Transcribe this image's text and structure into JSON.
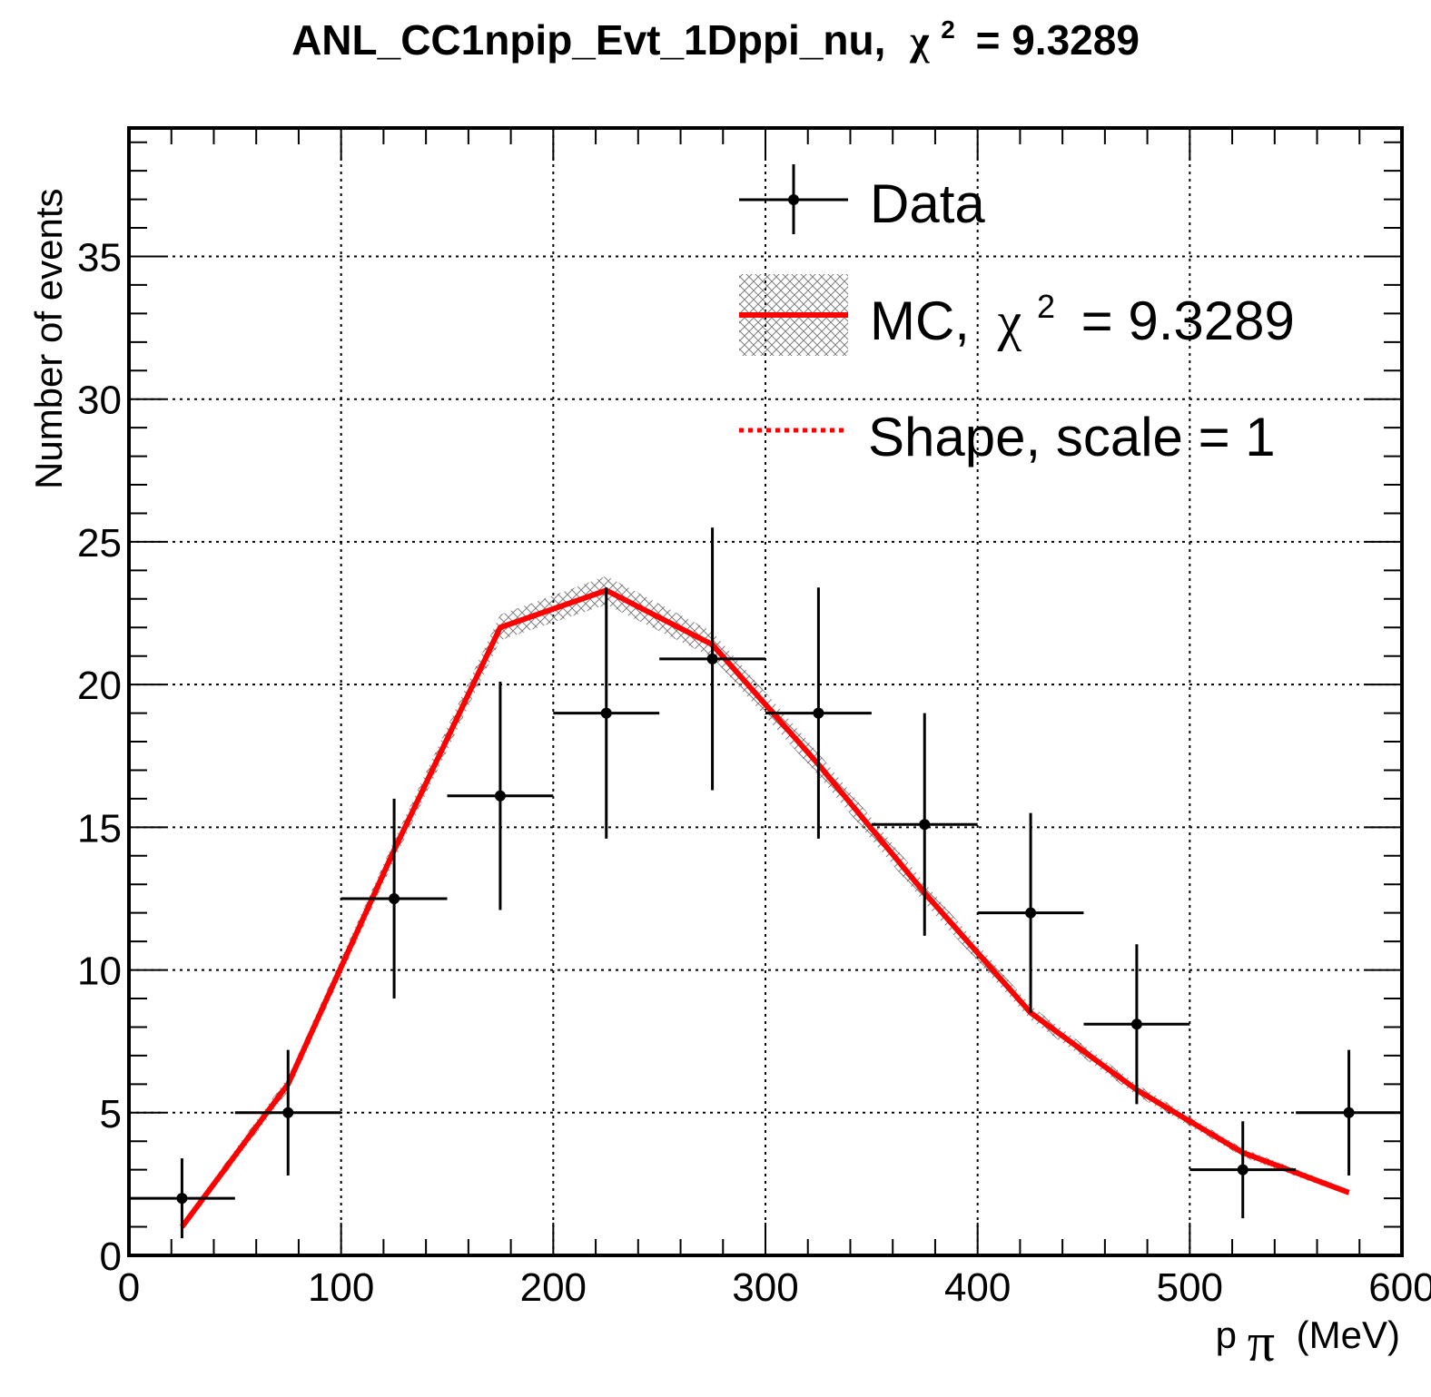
{
  "chart_data": {
    "type": "line",
    "title": {
      "name": "ANL_CC1npip_Evt_1Dppi_nu,",
      "chi_symbol": "χ",
      "chi_power": "2",
      "chi_value": "= 9.3289"
    },
    "xlabel": {
      "main": "p",
      "sub": "π",
      "unit": "(MeV)"
    },
    "ylabel": "Number of events",
    "xlim": [
      0,
      600
    ],
    "ylim": [
      0,
      39.5
    ],
    "xticks": [
      0,
      100,
      200,
      300,
      400,
      500,
      600
    ],
    "yticks": [
      0,
      5,
      10,
      15,
      20,
      25,
      30,
      35
    ],
    "x_minor_step": 20,
    "y_minor_step": 1,
    "grid": true,
    "legend_position": "top-right",
    "legend": {
      "data_label": "Data",
      "mc_label": "MC,",
      "mc_chi_symbol": "χ",
      "mc_chi_power": "2",
      "mc_chi_value": "= 9.3289",
      "shape_label": "Shape, scale = 1"
    },
    "colors": {
      "data": "#000000",
      "mc": "#ff0000",
      "band": "#808080",
      "grid": "#000000"
    },
    "series": [
      {
        "name": "Data",
        "kind": "points",
        "x": [
          25,
          75,
          125,
          175,
          225,
          275,
          325,
          375,
          425,
          475,
          525,
          575
        ],
        "y": [
          2,
          5,
          12.5,
          16.1,
          19,
          20.9,
          19,
          15.1,
          12,
          8.1,
          3,
          5
        ],
        "x_half_width": 25,
        "y_err": [
          1.4,
          2.2,
          3.5,
          4.0,
          4.4,
          4.6,
          4.4,
          3.9,
          3.5,
          2.8,
          1.7,
          2.2
        ]
      },
      {
        "name": "MC, χ2 = 9.3289",
        "kind": "line",
        "x": [
          25,
          75,
          125,
          175,
          225,
          275,
          325,
          375,
          425,
          475,
          525,
          575
        ],
        "y": [
          1.0,
          6.0,
          14.2,
          22.0,
          23.3,
          21.4,
          17.2,
          12.7,
          8.5,
          5.8,
          3.6,
          2.2
        ],
        "band_half_width": [
          0.15,
          0.25,
          0.35,
          0.45,
          0.5,
          0.45,
          0.4,
          0.35,
          0.25,
          0.2,
          0.15,
          0.1
        ]
      },
      {
        "name": "Shape, scale = 1",
        "kind": "dotted-line",
        "x": [
          25,
          75,
          125,
          175,
          225,
          275,
          325,
          375,
          425,
          475,
          525,
          575
        ],
        "y": [
          1.0,
          6.0,
          14.2,
          22.0,
          23.3,
          21.4,
          17.2,
          12.7,
          8.5,
          5.8,
          3.6,
          2.2
        ]
      }
    ]
  }
}
